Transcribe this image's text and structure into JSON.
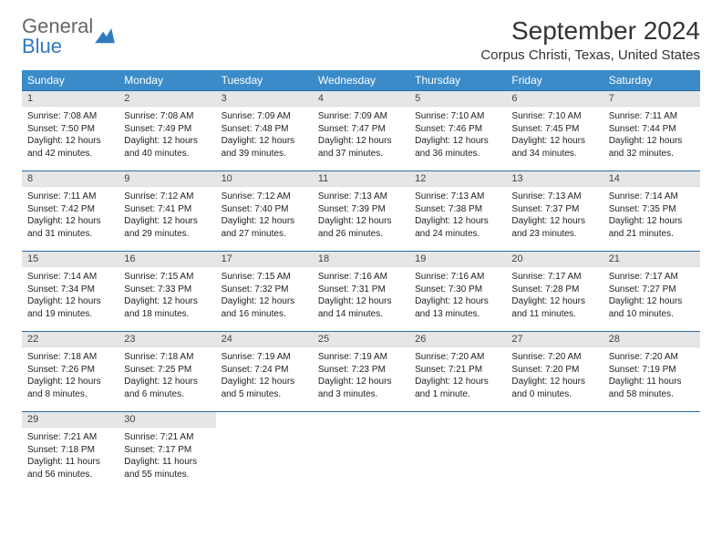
{
  "logo": {
    "text1": "General",
    "text2": "Blue"
  },
  "title": "September 2024",
  "location": "Corpus Christi, Texas, United States",
  "colors": {
    "header_bg": "#3b8bc9",
    "header_text": "#ffffff",
    "daynum_bg": "#e6e6e6",
    "row_divider": "#2b6ea5",
    "logo_gray": "#666666",
    "logo_blue": "#2f7bbf"
  },
  "weekdays": [
    "Sunday",
    "Monday",
    "Tuesday",
    "Wednesday",
    "Thursday",
    "Friday",
    "Saturday"
  ],
  "weeks": [
    [
      {
        "n": "1",
        "sr": "7:08 AM",
        "ss": "7:50 PM",
        "dl": "12 hours and 42 minutes."
      },
      {
        "n": "2",
        "sr": "7:08 AM",
        "ss": "7:49 PM",
        "dl": "12 hours and 40 minutes."
      },
      {
        "n": "3",
        "sr": "7:09 AM",
        "ss": "7:48 PM",
        "dl": "12 hours and 39 minutes."
      },
      {
        "n": "4",
        "sr": "7:09 AM",
        "ss": "7:47 PM",
        "dl": "12 hours and 37 minutes."
      },
      {
        "n": "5",
        "sr": "7:10 AM",
        "ss": "7:46 PM",
        "dl": "12 hours and 36 minutes."
      },
      {
        "n": "6",
        "sr": "7:10 AM",
        "ss": "7:45 PM",
        "dl": "12 hours and 34 minutes."
      },
      {
        "n": "7",
        "sr": "7:11 AM",
        "ss": "7:44 PM",
        "dl": "12 hours and 32 minutes."
      }
    ],
    [
      {
        "n": "8",
        "sr": "7:11 AM",
        "ss": "7:42 PM",
        "dl": "12 hours and 31 minutes."
      },
      {
        "n": "9",
        "sr": "7:12 AM",
        "ss": "7:41 PM",
        "dl": "12 hours and 29 minutes."
      },
      {
        "n": "10",
        "sr": "7:12 AM",
        "ss": "7:40 PM",
        "dl": "12 hours and 27 minutes."
      },
      {
        "n": "11",
        "sr": "7:13 AM",
        "ss": "7:39 PM",
        "dl": "12 hours and 26 minutes."
      },
      {
        "n": "12",
        "sr": "7:13 AM",
        "ss": "7:38 PM",
        "dl": "12 hours and 24 minutes."
      },
      {
        "n": "13",
        "sr": "7:13 AM",
        "ss": "7:37 PM",
        "dl": "12 hours and 23 minutes."
      },
      {
        "n": "14",
        "sr": "7:14 AM",
        "ss": "7:35 PM",
        "dl": "12 hours and 21 minutes."
      }
    ],
    [
      {
        "n": "15",
        "sr": "7:14 AM",
        "ss": "7:34 PM",
        "dl": "12 hours and 19 minutes."
      },
      {
        "n": "16",
        "sr": "7:15 AM",
        "ss": "7:33 PM",
        "dl": "12 hours and 18 minutes."
      },
      {
        "n": "17",
        "sr": "7:15 AM",
        "ss": "7:32 PM",
        "dl": "12 hours and 16 minutes."
      },
      {
        "n": "18",
        "sr": "7:16 AM",
        "ss": "7:31 PM",
        "dl": "12 hours and 14 minutes."
      },
      {
        "n": "19",
        "sr": "7:16 AM",
        "ss": "7:30 PM",
        "dl": "12 hours and 13 minutes."
      },
      {
        "n": "20",
        "sr": "7:17 AM",
        "ss": "7:28 PM",
        "dl": "12 hours and 11 minutes."
      },
      {
        "n": "21",
        "sr": "7:17 AM",
        "ss": "7:27 PM",
        "dl": "12 hours and 10 minutes."
      }
    ],
    [
      {
        "n": "22",
        "sr": "7:18 AM",
        "ss": "7:26 PM",
        "dl": "12 hours and 8 minutes."
      },
      {
        "n": "23",
        "sr": "7:18 AM",
        "ss": "7:25 PM",
        "dl": "12 hours and 6 minutes."
      },
      {
        "n": "24",
        "sr": "7:19 AM",
        "ss": "7:24 PM",
        "dl": "12 hours and 5 minutes."
      },
      {
        "n": "25",
        "sr": "7:19 AM",
        "ss": "7:23 PM",
        "dl": "12 hours and 3 minutes."
      },
      {
        "n": "26",
        "sr": "7:20 AM",
        "ss": "7:21 PM",
        "dl": "12 hours and 1 minute."
      },
      {
        "n": "27",
        "sr": "7:20 AM",
        "ss": "7:20 PM",
        "dl": "12 hours and 0 minutes."
      },
      {
        "n": "28",
        "sr": "7:20 AM",
        "ss": "7:19 PM",
        "dl": "11 hours and 58 minutes."
      }
    ],
    [
      {
        "n": "29",
        "sr": "7:21 AM",
        "ss": "7:18 PM",
        "dl": "11 hours and 56 minutes."
      },
      {
        "n": "30",
        "sr": "7:21 AM",
        "ss": "7:17 PM",
        "dl": "11 hours and 55 minutes."
      },
      null,
      null,
      null,
      null,
      null
    ]
  ],
  "labels": {
    "sunrise": "Sunrise:",
    "sunset": "Sunset:",
    "daylight": "Daylight:"
  }
}
